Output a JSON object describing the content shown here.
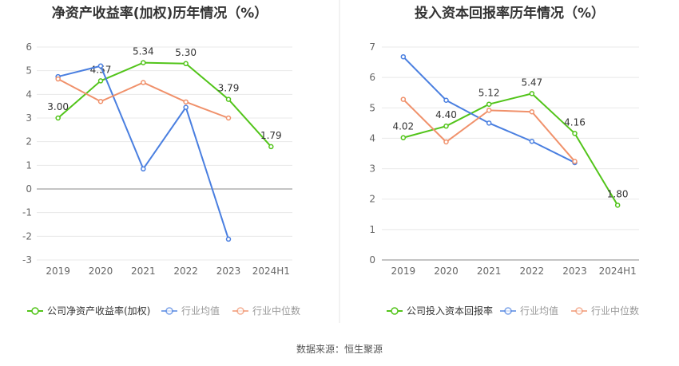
{
  "source": "数据来源：恒生聚源",
  "chart_data": [
    {
      "type": "line",
      "title": "净资产收益率(加权)历年情况（%）",
      "categories": [
        "2019",
        "2020",
        "2021",
        "2022",
        "2023",
        "2024H1"
      ],
      "ylim": [
        -3,
        6
      ],
      "yticks": [
        -3,
        -2,
        -1,
        0,
        1,
        2,
        3,
        4,
        5,
        6
      ],
      "grid": true,
      "legend_position": "bottom-left",
      "series": [
        {
          "name": "公司净资产收益率(加权)",
          "color": "#52c41a",
          "values": [
            3.0,
            4.57,
            5.34,
            5.3,
            3.79,
            1.79
          ],
          "labels": [
            "3.00",
            "4.57",
            "5.34",
            "5.30",
            "3.79",
            "1.79"
          ]
        },
        {
          "name": "行业均值",
          "color": "#4a7fe0",
          "values": [
            4.75,
            5.2,
            0.85,
            3.45,
            -2.12,
            null
          ]
        },
        {
          "name": "行业中位数",
          "color": "#f0916b",
          "values": [
            4.65,
            3.7,
            4.5,
            3.68,
            3.0,
            null
          ]
        }
      ]
    },
    {
      "type": "line",
      "title": "投入资本回报率历年情况（%）",
      "categories": [
        "2019",
        "2020",
        "2021",
        "2022",
        "2023",
        "2024H1"
      ],
      "ylim": [
        0,
        7
      ],
      "yticks": [
        0,
        1,
        2,
        3,
        4,
        5,
        6,
        7
      ],
      "grid": true,
      "legend_position": "bottom-left",
      "series": [
        {
          "name": "公司投入资本回报率",
          "color": "#52c41a",
          "values": [
            4.02,
            4.4,
            5.12,
            5.47,
            4.16,
            1.8
          ],
          "labels": [
            "4.02",
            "4.40",
            "5.12",
            "5.47",
            "4.16",
            "1.80"
          ]
        },
        {
          "name": "行业均值",
          "color": "#4a7fe0",
          "values": [
            6.68,
            5.25,
            4.5,
            3.9,
            3.2,
            null
          ]
        },
        {
          "name": "行业中位数",
          "color": "#f0916b",
          "values": [
            5.28,
            3.88,
            4.92,
            4.87,
            3.24,
            null
          ]
        }
      ]
    }
  ]
}
